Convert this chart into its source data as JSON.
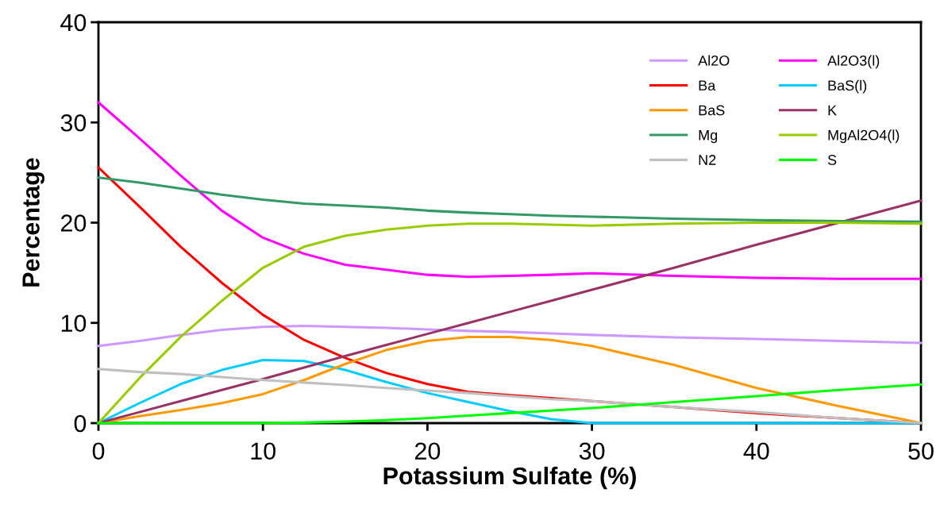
{
  "chart_data": {
    "type": "line",
    "xlabel": "Potassium Sulfate (%)",
    "ylabel": "Percentage",
    "x": [
      0,
      2.5,
      5,
      7.5,
      10,
      12.5,
      15,
      17.5,
      20,
      22.5,
      25,
      27.5,
      30,
      35,
      40,
      45,
      50
    ],
    "xlim": [
      0,
      50
    ],
    "xticks": [
      0,
      10,
      20,
      30,
      40,
      50
    ],
    "ylim": [
      0,
      40
    ],
    "yticks": [
      0,
      10,
      20,
      30,
      40
    ],
    "grid": false,
    "legend": "top right",
    "marker": "none",
    "line_style": "solid",
    "series": [
      {
        "name": "Al2O",
        "color": "#cc99ff",
        "values": [
          7.7,
          8.2,
          8.8,
          9.3,
          9.6,
          9.7,
          9.6,
          9.5,
          9.35,
          9.2,
          9.1,
          8.95,
          8.8,
          8.55,
          8.4,
          8.2,
          8.0
        ]
      },
      {
        "name": "Al2O3(l)",
        "color": "#ff00ff",
        "values": [
          32,
          28.4,
          24.7,
          21.2,
          18.5,
          16.9,
          15.8,
          15.3,
          14.8,
          14.6,
          14.7,
          14.8,
          14.95,
          14.7,
          14.5,
          14.4,
          14.4
        ]
      },
      {
        "name": "Ba",
        "color": "#ff0000",
        "values": [
          25.5,
          21.6,
          17.6,
          14.0,
          10.8,
          8.3,
          6.5,
          5.0,
          3.9,
          3.1,
          2.8,
          2.5,
          2.2,
          1.6,
          1.0,
          0.5,
          0
        ]
      },
      {
        "name": "BaS(l)",
        "color": "#00ccff",
        "values": [
          0,
          2.0,
          3.9,
          5.3,
          6.3,
          6.2,
          5.3,
          4.1,
          3.0,
          2.1,
          1.2,
          0.4,
          0,
          0,
          0,
          0,
          0
        ]
      },
      {
        "name": "BaS",
        "color": "#ff9900",
        "values": [
          0,
          0.7,
          1.3,
          2.0,
          2.9,
          4.3,
          5.9,
          7.3,
          8.2,
          8.6,
          8.6,
          8.3,
          7.7,
          5.8,
          3.5,
          1.7,
          0
        ]
      },
      {
        "name": "K",
        "color": "#993366",
        "values": [
          0,
          1.1,
          2.2,
          3.3,
          4.4,
          5.55,
          6.7,
          7.8,
          8.9,
          10,
          11.1,
          12.2,
          13.3,
          15.5,
          17.8,
          20,
          22.2
        ]
      },
      {
        "name": "Mg",
        "color": "#339966",
        "values": [
          24.5,
          24.0,
          23.4,
          22.8,
          22.3,
          21.9,
          21.7,
          21.5,
          21.2,
          21.0,
          20.85,
          20.7,
          20.6,
          20.4,
          20.25,
          20.15,
          20.1
        ]
      },
      {
        "name": "MgAl2O4(l)",
        "color": "#99cc00",
        "values": [
          0,
          4.5,
          8.6,
          12.2,
          15.5,
          17.6,
          18.7,
          19.3,
          19.7,
          19.9,
          19.9,
          19.8,
          19.7,
          19.9,
          20.0,
          20.0,
          19.9
        ]
      },
      {
        "name": "N2",
        "color": "#c0c0c0",
        "values": [
          5.4,
          5.1,
          4.9,
          4.6,
          4.3,
          4.05,
          3.8,
          3.5,
          3.25,
          3.0,
          2.7,
          2.4,
          2.2,
          1.6,
          1.1,
          0.5,
          0
        ]
      },
      {
        "name": "S",
        "color": "#00ff00",
        "values": [
          0,
          0,
          0,
          0,
          0,
          0.05,
          0.15,
          0.3,
          0.5,
          0.75,
          1.0,
          1.25,
          1.5,
          2.1,
          2.7,
          3.3,
          3.85
        ]
      }
    ]
  }
}
